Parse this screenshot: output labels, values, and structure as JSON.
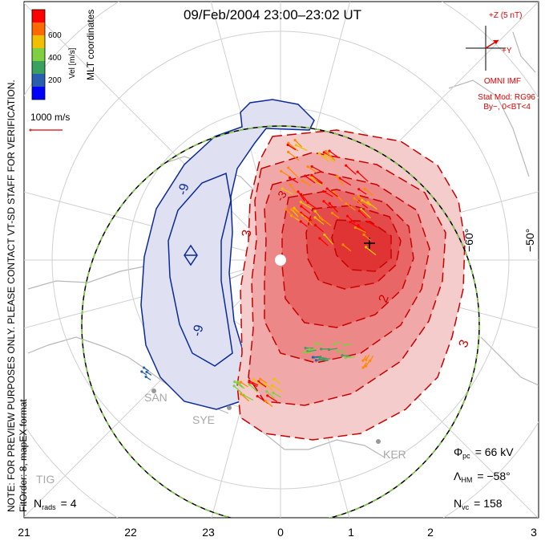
{
  "title": "09/Feb/2004 23:00–23:02 UT",
  "coord_label": "MLT coordinates",
  "note_lines": [
    "NOTE: FOR PREVIEW PURPOSES ONLY. PLEASE CONTACT VT-SD STAFF FOR VERIFICATION.",
    "FitOrder: 8, mapEX format"
  ],
  "colorbar": {
    "label": "Vel [m/s]",
    "ticks": [
      "600",
      "400",
      "200"
    ],
    "colors": [
      "#ff0000",
      "#ff8c00",
      "#f0c000",
      "#7fd040",
      "#3aa060",
      "#2a5fb0",
      "#0000ff"
    ]
  },
  "vector_scale": "1000 m/s",
  "imf": {
    "z_label": "+Z (5 nT)",
    "y_label": "+Y",
    "source": "OMNI IMF",
    "model": "Stat Mod: RG96",
    "condition": "By−, 0<BT<4"
  },
  "lat_labels": [
    "−60°",
    "−50°"
  ],
  "contour_labels": [
    "-9",
    "-9",
    "3",
    "-3",
    "2",
    "3"
  ],
  "stations": [
    "SAN",
    "SYE",
    "KER",
    "TIG"
  ],
  "mlt_ticks": [
    "21",
    "22",
    "23",
    "0",
    "1",
    "2",
    "3"
  ],
  "stats": {
    "nrads_label": "N",
    "nrads_sub": "rads",
    "nrads_value": "= 4",
    "phi_label": "Φ",
    "phi_sub": "pc",
    "phi_value": "= 66 kV",
    "lambda_label": "Λ",
    "lambda_sub": "HM",
    "lambda_value": "= −58°",
    "nvc_label": "N",
    "nvc_sub": "vc",
    "nvc_value": "= 158"
  }
}
